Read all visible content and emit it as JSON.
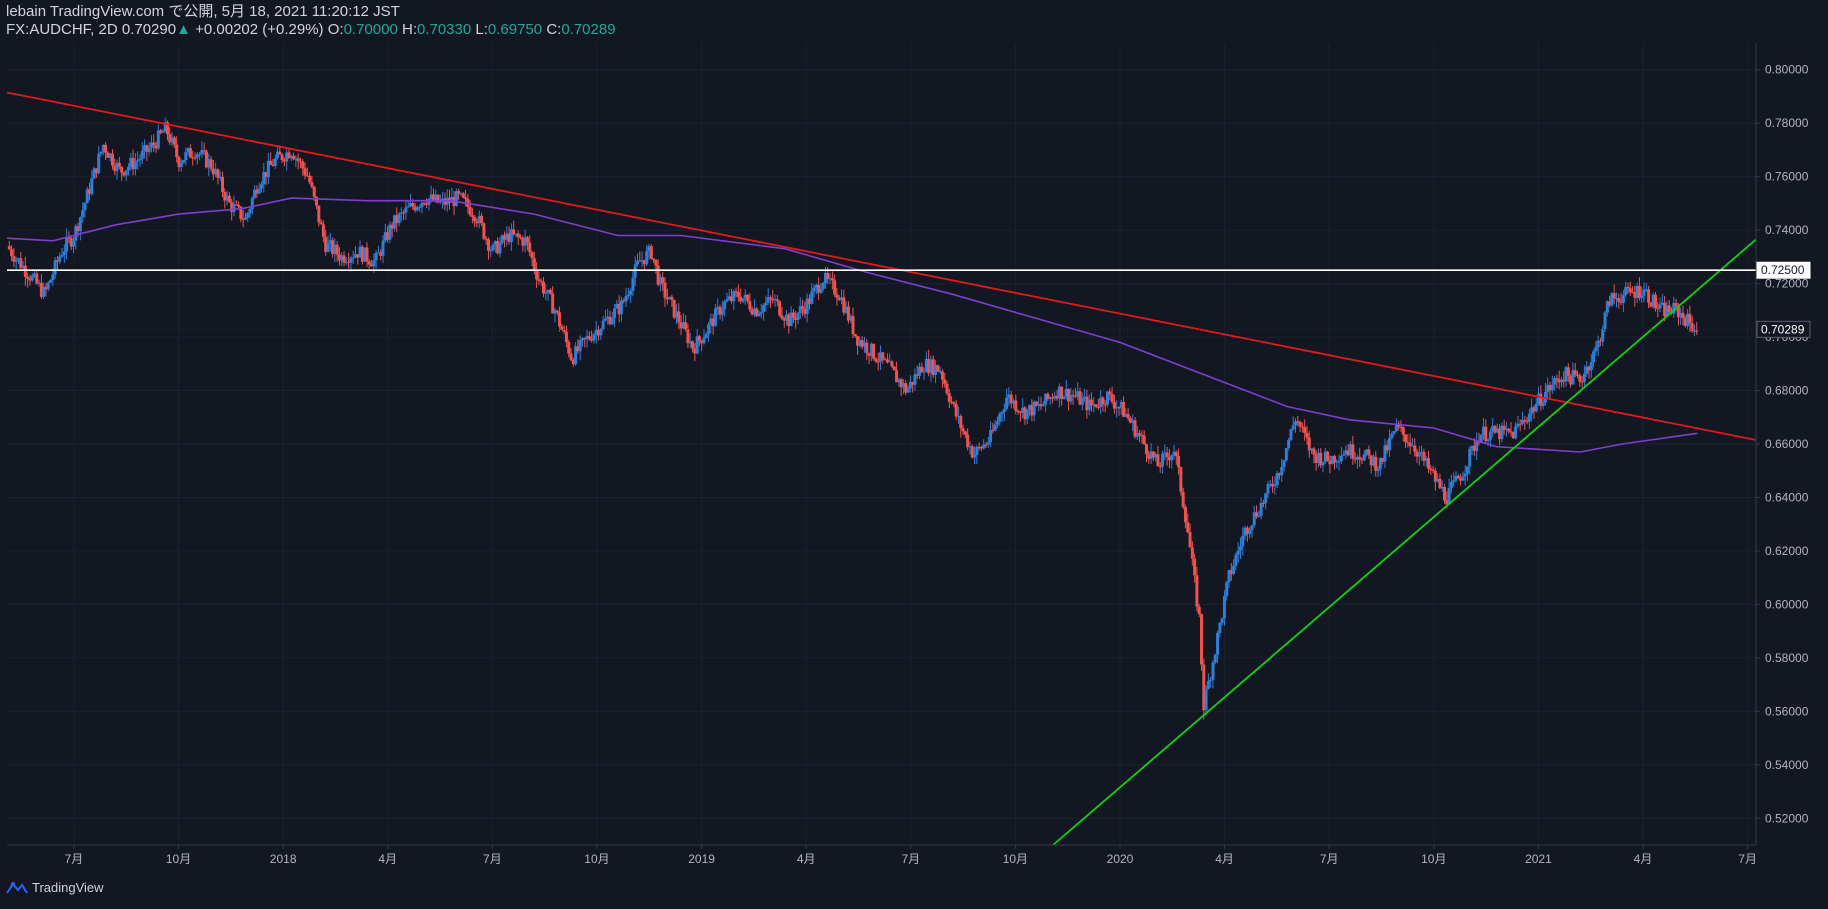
{
  "header": {
    "publish_line": "lebain TradingView.com で公開, 5月 18, 2021 11:20:12 JST",
    "symbol": "FX:AUDCHF, 2D",
    "last": "0.70290",
    "up_arrow": "▲",
    "change": "+0.00202 (+0.29%)",
    "o_label": "O:",
    "o_value": "0.70000",
    "h_label": "H:",
    "h_value": "0.70330",
    "l_label": "L:",
    "l_value": "0.69750",
    "c_label": "C:",
    "c_value": "0.70289"
  },
  "footer": {
    "brand": "TradingView",
    "logo_icon": "tradingview-logo-icon"
  },
  "colors": {
    "background": "#131722",
    "bull": "#2f7ed8",
    "bear": "#ef5350",
    "ma": "#7e3fd0",
    "resistance": "#e01b1b",
    "support": "#11d311",
    "level": "#ffffff",
    "axis_text": "#b2b5be",
    "axis_line": "#363a45"
  },
  "chart_data": {
    "type": "candlestick",
    "symbol": "FX:AUDCHF",
    "timeframe": "2D",
    "ylim": [
      0.51,
      0.81
    ],
    "y_ticks": [
      "0.80000",
      "0.78000",
      "0.76000",
      "0.74000",
      "0.72000",
      "0.70000",
      "0.68000",
      "0.66000",
      "0.64000",
      "0.62000",
      "0.60000",
      "0.58000",
      "0.56000",
      "0.54000",
      "0.52000"
    ],
    "x_ticks": [
      "7月",
      "10月",
      "2018",
      "4月",
      "7月",
      "10月",
      "2019",
      "4月",
      "7月",
      "10月",
      "2020",
      "4月",
      "7月",
      "10月",
      "2021",
      "4月",
      "7月"
    ],
    "x_tick_dates": [
      2017.5,
      2017.75,
      2018.0,
      2018.25,
      2018.5,
      2018.75,
      2019.0,
      2019.25,
      2019.5,
      2019.75,
      2020.0,
      2020.25,
      2020.5,
      2020.75,
      2021.0,
      2021.25,
      2021.5
    ],
    "xlim": [
      2017.34,
      2021.52
    ],
    "price_labels": [
      {
        "name": "horizontal-level",
        "value": 0.725,
        "text": "0.72500"
      },
      {
        "name": "last-price",
        "value": 0.70289,
        "text": "0.70289"
      }
    ],
    "close_path": [
      [
        2017.34,
        0.734
      ],
      [
        2017.4,
        0.722
      ],
      [
        2017.43,
        0.716
      ],
      [
        2017.47,
        0.732
      ],
      [
        2017.5,
        0.738
      ],
      [
        2017.53,
        0.752
      ],
      [
        2017.57,
        0.772
      ],
      [
        2017.61,
        0.762
      ],
      [
        2017.65,
        0.766
      ],
      [
        2017.69,
        0.772
      ],
      [
        2017.72,
        0.778
      ],
      [
        2017.75,
        0.766
      ],
      [
        2017.79,
        0.77
      ],
      [
        2017.83,
        0.764
      ],
      [
        2017.87,
        0.75
      ],
      [
        2017.91,
        0.744
      ],
      [
        2017.94,
        0.758
      ],
      [
        2017.98,
        0.766
      ],
      [
        2018.02,
        0.77
      ],
      [
        2018.06,
        0.76
      ],
      [
        2018.1,
        0.735
      ],
      [
        2018.14,
        0.73
      ],
      [
        2018.18,
        0.732
      ],
      [
        2018.22,
        0.728
      ],
      [
        2018.26,
        0.742
      ],
      [
        2018.3,
        0.748
      ],
      [
        2018.34,
        0.752
      ],
      [
        2018.38,
        0.75
      ],
      [
        2018.42,
        0.752
      ],
      [
        2018.46,
        0.746
      ],
      [
        2018.5,
        0.732
      ],
      [
        2018.54,
        0.738
      ],
      [
        2018.58,
        0.736
      ],
      [
        2018.61,
        0.722
      ],
      [
        2018.65,
        0.71
      ],
      [
        2018.69,
        0.692
      ],
      [
        2018.73,
        0.7
      ],
      [
        2018.77,
        0.706
      ],
      [
        2018.81,
        0.712
      ],
      [
        2018.85,
        0.728
      ],
      [
        2018.88,
        0.732
      ],
      [
        2018.9,
        0.72
      ],
      [
        2018.94,
        0.708
      ],
      [
        2018.98,
        0.696
      ],
      [
        2019.01,
        0.702
      ],
      [
        2019.05,
        0.712
      ],
      [
        2019.09,
        0.716
      ],
      [
        2019.13,
        0.71
      ],
      [
        2019.17,
        0.714
      ],
      [
        2019.21,
        0.706
      ],
      [
        2019.25,
        0.712
      ],
      [
        2019.29,
        0.722
      ],
      [
        2019.33,
        0.716
      ],
      [
        2019.37,
        0.7
      ],
      [
        2019.41,
        0.694
      ],
      [
        2019.45,
        0.688
      ],
      [
        2019.49,
        0.68
      ],
      [
        2019.53,
        0.69
      ],
      [
        2019.57,
        0.688
      ],
      [
        2019.61,
        0.67
      ],
      [
        2019.65,
        0.656
      ],
      [
        2019.69,
        0.662
      ],
      [
        2019.73,
        0.678
      ],
      [
        2019.77,
        0.672
      ],
      [
        2019.81,
        0.674
      ],
      [
        2019.85,
        0.68
      ],
      [
        2019.89,
        0.678
      ],
      [
        2019.93,
        0.674
      ],
      [
        2019.97,
        0.678
      ],
      [
        2020.01,
        0.672
      ],
      [
        2020.05,
        0.662
      ],
      [
        2020.09,
        0.652
      ],
      [
        2020.13,
        0.658
      ],
      [
        2020.16,
        0.63
      ],
      [
        2020.19,
        0.594
      ],
      [
        2020.2,
        0.562
      ],
      [
        2020.23,
        0.585
      ],
      [
        2020.26,
        0.61
      ],
      [
        2020.3,
        0.628
      ],
      [
        2020.34,
        0.638
      ],
      [
        2020.38,
        0.65
      ],
      [
        2020.42,
        0.67
      ],
      [
        2020.46,
        0.656
      ],
      [
        2020.5,
        0.654
      ],
      [
        2020.54,
        0.658
      ],
      [
        2020.58,
        0.656
      ],
      [
        2020.62,
        0.652
      ],
      [
        2020.66,
        0.666
      ],
      [
        2020.7,
        0.66
      ],
      [
        2020.74,
        0.65
      ],
      [
        2020.78,
        0.64
      ],
      [
        2020.82,
        0.65
      ],
      [
        2020.86,
        0.664
      ],
      [
        2020.9,
        0.664
      ],
      [
        2020.94,
        0.664
      ],
      [
        2020.98,
        0.672
      ],
      [
        2021.02,
        0.68
      ],
      [
        2021.06,
        0.686
      ],
      [
        2021.1,
        0.684
      ],
      [
        2021.14,
        0.696
      ],
      [
        2021.17,
        0.714
      ],
      [
        2021.21,
        0.716
      ],
      [
        2021.25,
        0.718
      ],
      [
        2021.29,
        0.71
      ],
      [
        2021.33,
        0.71
      ],
      [
        2021.37,
        0.704
      ],
      [
        2021.38,
        0.70289
      ]
    ],
    "moving_average": [
      [
        2017.34,
        0.737
      ],
      [
        2017.45,
        0.736
      ],
      [
        2017.6,
        0.742
      ],
      [
        2017.75,
        0.746
      ],
      [
        2017.9,
        0.748
      ],
      [
        2018.02,
        0.752
      ],
      [
        2018.2,
        0.751
      ],
      [
        2018.4,
        0.751
      ],
      [
        2018.6,
        0.746
      ],
      [
        2018.8,
        0.738
      ],
      [
        2018.95,
        0.738
      ],
      [
        2019.2,
        0.733
      ],
      [
        2019.4,
        0.724
      ],
      [
        2019.6,
        0.716
      ],
      [
        2019.8,
        0.707
      ],
      [
        2020.0,
        0.698
      ],
      [
        2020.2,
        0.686
      ],
      [
        2020.4,
        0.674
      ],
      [
        2020.55,
        0.669
      ],
      [
        2020.75,
        0.666
      ],
      [
        2020.9,
        0.659
      ],
      [
        2021.0,
        0.658
      ],
      [
        2021.1,
        0.657
      ],
      [
        2021.2,
        0.66
      ],
      [
        2021.38,
        0.664
      ]
    ],
    "trendlines": [
      {
        "name": "resistance-trendline",
        "color": "#e01b1b",
        "from": [
          2017.34,
          0.7915
        ],
        "to": [
          2021.52,
          0.6615
        ]
      },
      {
        "name": "support-trendline",
        "color": "#11d311",
        "from": [
          2019.84,
          0.51
        ],
        "to": [
          2021.52,
          0.7365
        ]
      }
    ],
    "horizontal_lines": [
      {
        "name": "resistance-level-line",
        "color": "#ffffff",
        "value": 0.725
      }
    ]
  }
}
